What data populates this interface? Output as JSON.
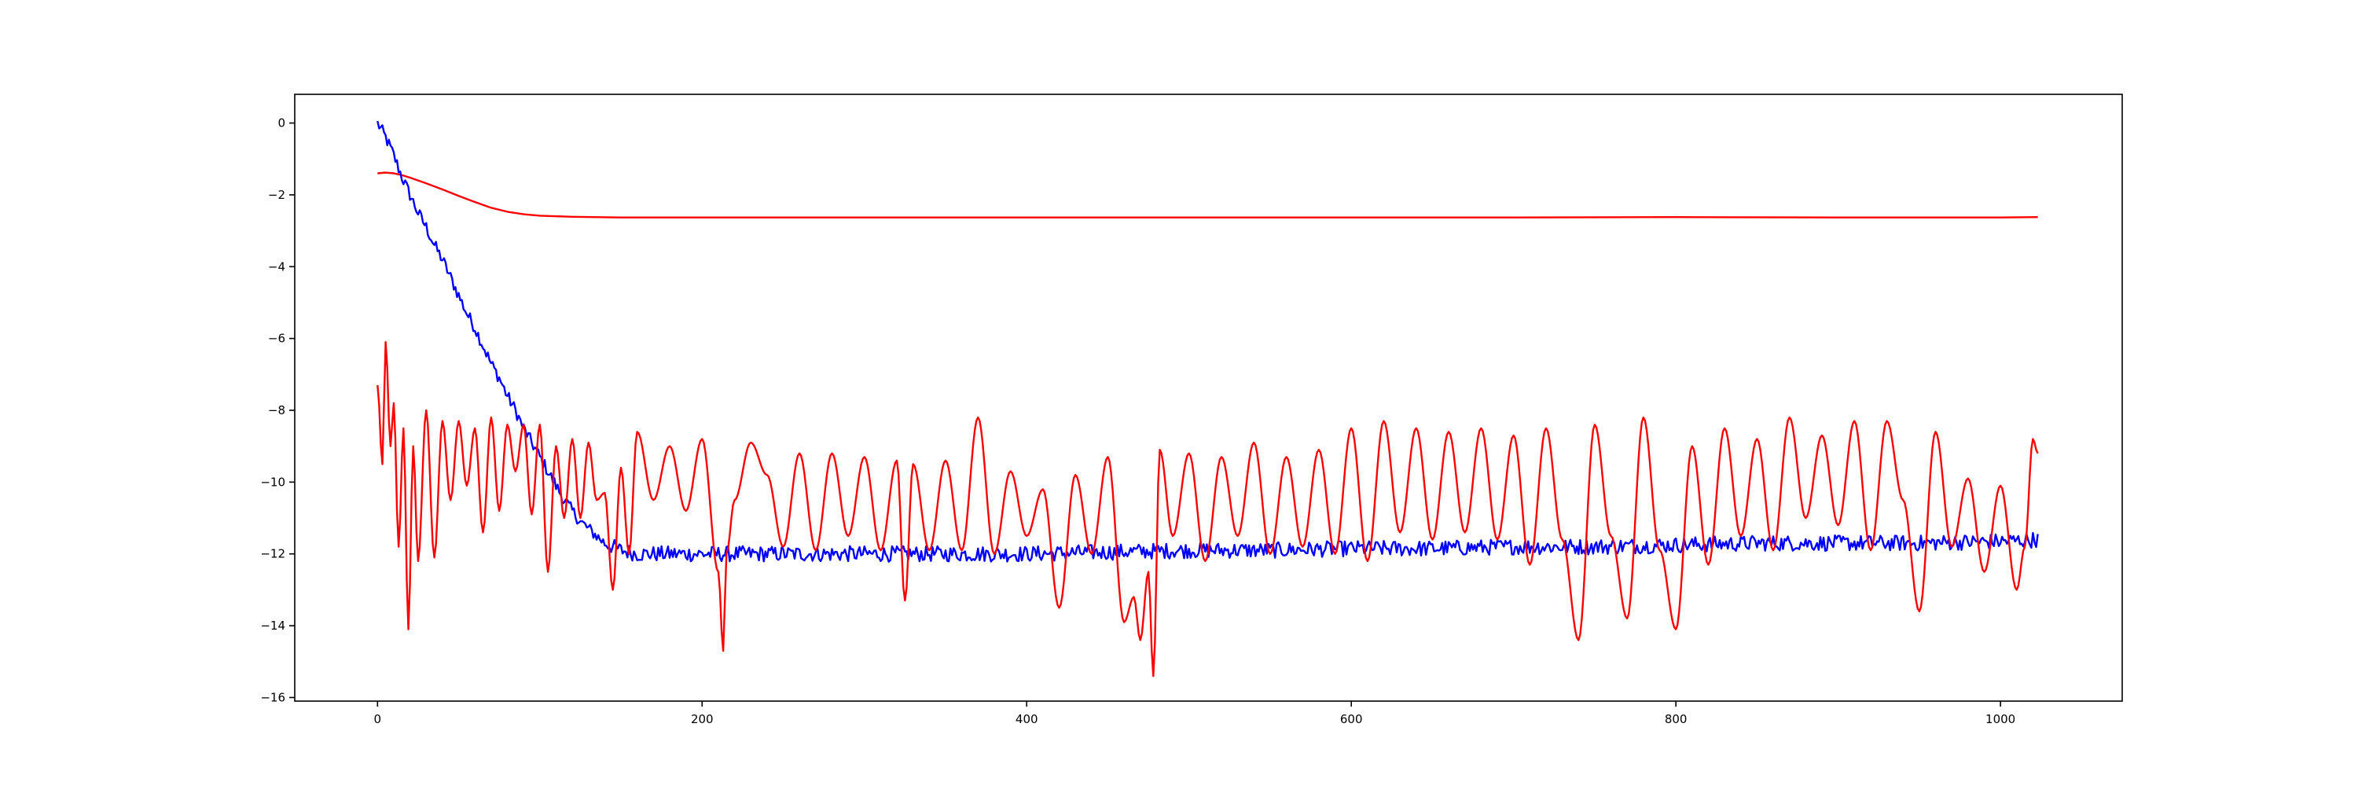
{
  "chart_data": {
    "type": "line",
    "title": "",
    "xlabel": "",
    "ylabel": "",
    "xlim": [
      -51,
      1075
    ],
    "ylim": [
      -16.1,
      0.8
    ],
    "x_ticks": [
      0,
      200,
      400,
      600,
      800,
      1000
    ],
    "y_ticks": [
      0,
      -2,
      -4,
      -6,
      -8,
      -10,
      -12,
      -14,
      -16
    ],
    "x_tick_labels": [
      "0",
      "200",
      "400",
      "600",
      "800",
      "1000"
    ],
    "y_tick_labels": [
      "0",
      "−2",
      "−4",
      "−6",
      "−8",
      "−10",
      "−12",
      "−14",
      "−16"
    ],
    "grid": false,
    "legend": "none",
    "series": [
      {
        "color": "#ff0000",
        "style": "smooth",
        "x": [
          0,
          5,
          10,
          15,
          20,
          30,
          40,
          50,
          60,
          70,
          80,
          90,
          100,
          120,
          150,
          200,
          300,
          400,
          500,
          600,
          700,
          800,
          900,
          1000,
          1023
        ],
        "values": [
          -1.4,
          -1.38,
          -1.4,
          -1.45,
          -1.52,
          -1.68,
          -1.85,
          -2.03,
          -2.2,
          -2.36,
          -2.47,
          -2.54,
          -2.58,
          -2.61,
          -2.63,
          -2.63,
          -2.63,
          -2.63,
          -2.63,
          -2.63,
          -2.63,
          -2.62,
          -2.63,
          -2.63,
          -2.62
        ]
      },
      {
        "color": "#0000ff",
        "style": "noisy",
        "x": [
          0,
          5,
          10,
          15,
          20,
          25,
          30,
          35,
          40,
          45,
          50,
          55,
          60,
          65,
          70,
          75,
          80,
          85,
          90,
          95,
          100,
          105,
          110,
          115,
          120,
          125,
          130,
          135,
          140,
          145,
          150,
          160,
          170,
          180,
          190,
          200,
          220,
          250,
          300,
          350,
          400,
          450,
          500,
          550,
          600,
          650,
          700,
          750,
          800,
          850,
          900,
          950,
          1000,
          1023
        ],
        "values": [
          0.0,
          -0.4,
          -0.9,
          -1.5,
          -2.0,
          -2.5,
          -2.9,
          -3.4,
          -3.8,
          -4.3,
          -4.8,
          -5.3,
          -5.7,
          -6.2,
          -6.7,
          -7.1,
          -7.6,
          -8.0,
          -8.5,
          -8.9,
          -9.3,
          -9.7,
          -10.1,
          -10.5,
          -10.8,
          -11.1,
          -11.3,
          -11.5,
          -11.7,
          -11.8,
          -11.9,
          -12.0,
          -12.0,
          -12.0,
          -12.0,
          -12.0,
          -12.0,
          -12.0,
          -12.0,
          -12.0,
          -12.0,
          -11.95,
          -11.9,
          -11.9,
          -11.85,
          -11.85,
          -11.8,
          -11.8,
          -11.75,
          -11.7,
          -11.7,
          -11.7,
          -11.65,
          -11.6
        ]
      },
      {
        "color": "#ff0000",
        "style": "oscillating",
        "x": [
          0,
          3,
          5,
          8,
          10,
          13,
          16,
          19,
          22,
          25,
          30,
          35,
          40,
          45,
          50,
          55,
          60,
          65,
          70,
          75,
          80,
          85,
          90,
          95,
          100,
          105,
          110,
          115,
          120,
          125,
          130,
          135,
          140,
          145,
          150,
          155,
          160,
          170,
          180,
          190,
          200,
          210,
          213,
          215,
          220,
          230,
          240,
          250,
          260,
          270,
          280,
          290,
          300,
          310,
          320,
          325,
          330,
          340,
          350,
          360,
          370,
          380,
          390,
          400,
          410,
          420,
          430,
          440,
          450,
          460,
          466,
          470,
          475,
          478,
          482,
          490,
          500,
          510,
          520,
          530,
          540,
          550,
          560,
          570,
          580,
          590,
          600,
          610,
          620,
          630,
          640,
          650,
          660,
          670,
          680,
          690,
          700,
          710,
          720,
          730,
          740,
          750,
          760,
          770,
          780,
          790,
          800,
          810,
          820,
          830,
          840,
          850,
          860,
          870,
          880,
          890,
          900,
          910,
          920,
          930,
          940,
          950,
          960,
          970,
          980,
          990,
          1000,
          1010,
          1015,
          1020,
          1023
        ],
        "values": [
          -7.3,
          -9.5,
          -6.1,
          -9.0,
          -7.8,
          -11.8,
          -8.5,
          -14.1,
          -9.0,
          -12.2,
          -8.0,
          -12.1,
          -8.3,
          -10.5,
          -8.3,
          -10.1,
          -8.5,
          -11.4,
          -8.2,
          -10.8,
          -8.4,
          -9.7,
          -8.4,
          -10.9,
          -8.4,
          -12.5,
          -9.0,
          -11.0,
          -8.8,
          -11.0,
          -8.9,
          -10.5,
          -10.3,
          -13.0,
          -9.6,
          -12.0,
          -8.6,
          -10.5,
          -9.0,
          -10.8,
          -8.8,
          -12.5,
          -14.7,
          -12.0,
          -10.5,
          -8.9,
          -9.8,
          -11.8,
          -9.2,
          -11.9,
          -9.2,
          -11.5,
          -9.3,
          -11.9,
          -9.4,
          -13.3,
          -9.5,
          -11.9,
          -9.4,
          -11.9,
          -8.2,
          -12.0,
          -9.7,
          -11.5,
          -10.2,
          -13.5,
          -9.8,
          -12.0,
          -9.3,
          -13.9,
          -13.2,
          -14.4,
          -12.5,
          -15.4,
          -9.1,
          -11.5,
          -9.2,
          -12.2,
          -9.3,
          -11.5,
          -8.9,
          -12.0,
          -9.3,
          -11.8,
          -9.1,
          -12.0,
          -8.5,
          -12.2,
          -8.3,
          -11.4,
          -8.5,
          -11.6,
          -8.6,
          -11.4,
          -8.5,
          -11.6,
          -8.7,
          -12.3,
          -8.5,
          -11.6,
          -14.4,
          -8.4,
          -11.5,
          -13.8,
          -8.2,
          -11.9,
          -14.1,
          -9.0,
          -12.3,
          -8.5,
          -11.5,
          -8.8,
          -11.9,
          -8.2,
          -11.0,
          -8.7,
          -11.2,
          -8.3,
          -11.9,
          -8.3,
          -10.5,
          -13.6,
          -8.6,
          -11.8,
          -9.9,
          -12.5,
          -10.1,
          -13.0,
          -11.8,
          -8.8,
          -9.2
        ]
      }
    ]
  }
}
